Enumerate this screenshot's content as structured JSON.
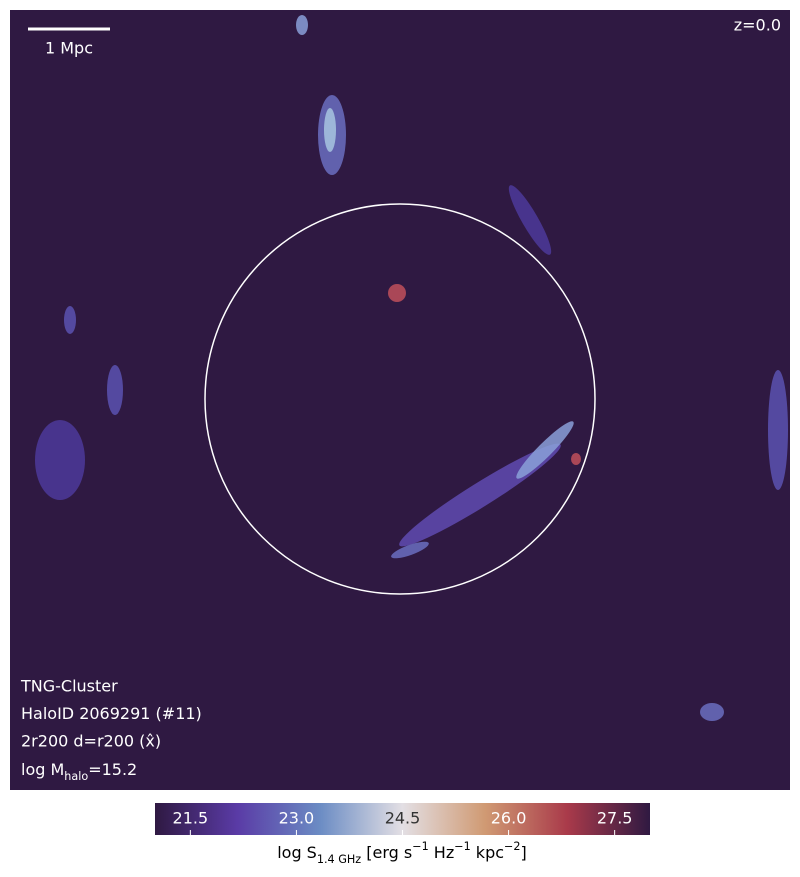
{
  "chart_data": {
    "type": "map",
    "scale_bar": "1 Mpc",
    "redshift": "z=0.0",
    "info": [
      "TNG-Cluster",
      "HaloID 2069291 (#11)",
      "2r200 d=r200 (x̂)"
    ],
    "mass_label": [
      {
        "text": "log M"
      },
      {
        "text": "halo",
        "shift": "sub"
      },
      {
        "text": "=15.2"
      }
    ],
    "colorbar": {
      "clim": [
        21,
        28
      ],
      "ticks": [
        21.5,
        {
          "value": 23,
          "label": "23.0"
        },
        24.5,
        {
          "value": 26,
          "label": "26.0"
        },
        27.5
      ],
      "colors": [
        "#2f1942",
        "#5a3ba6",
        "#6b8cc4",
        "#e3dfe4",
        "#d09a73",
        "#a93a4a",
        "#2f1942"
      ],
      "label": [
        {
          "text": "log S"
        },
        {
          "text": "1.4 GHz",
          "shift": "sub"
        },
        {
          "text": " [erg s"
        },
        {
          "text": "−1",
          "shift": "sup"
        },
        {
          "text": " Hz"
        },
        {
          "text": "−1",
          "shift": "sup"
        },
        {
          "text": " kpc"
        },
        {
          "text": "−2",
          "shift": "sup"
        },
        {
          "text": "]"
        }
      ]
    }
  }
}
